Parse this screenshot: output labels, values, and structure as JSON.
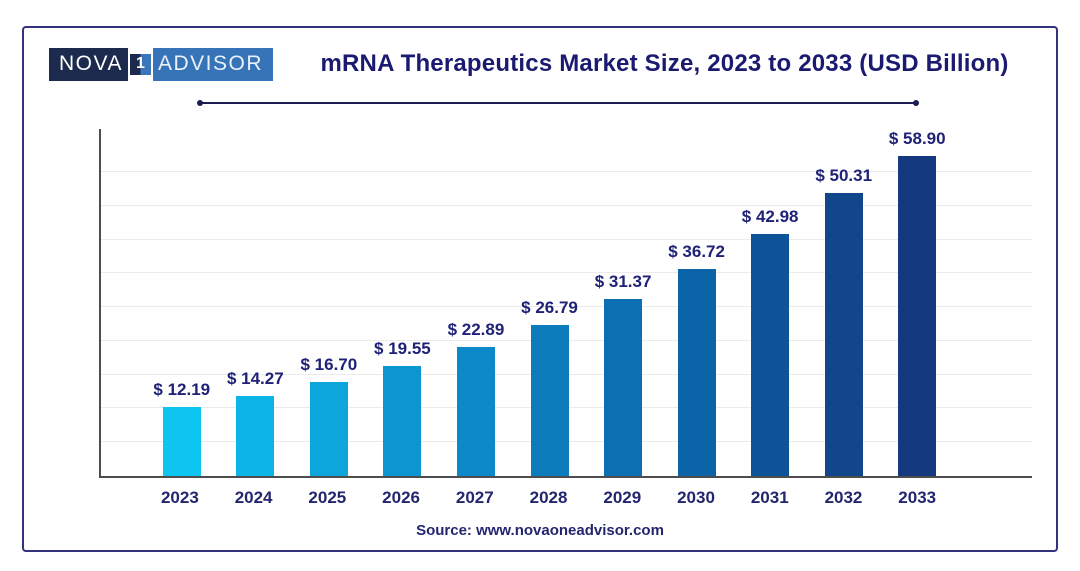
{
  "brand": {
    "segment_left": "NOVA",
    "segment_box": "1",
    "segment_right": "ADVISOR",
    "color_left_bg": "#1c2b4d",
    "color_right_bg": "#3674b7"
  },
  "header": {
    "title": "mRNA Therapeutics Market Size, 2023 to 2033 (USD Billion)"
  },
  "footer": {
    "source": "Source: www.novaoneadvisor.com"
  },
  "chart_data": {
    "type": "bar",
    "title": "mRNA Therapeutics Market Size, 2023 to 2033 (USD Billion)",
    "categories": [
      "2023",
      "2024",
      "2025",
      "2026",
      "2027",
      "2028",
      "2029",
      "2030",
      "2031",
      "2032",
      "2033"
    ],
    "values": [
      12.19,
      14.27,
      16.7,
      19.55,
      22.89,
      26.79,
      31.37,
      36.72,
      42.98,
      50.31,
      58.9
    ],
    "value_prefix": "$ ",
    "unit": "USD Billion",
    "xlabel": "",
    "ylabel": "",
    "ylim": [
      0,
      62
    ],
    "grid": "horizontal",
    "gridline_step": 6,
    "legend": "none",
    "bar_colors": [
      "#0ec4f1",
      "#0db4e7",
      "#0ca5dc",
      "#0b96d1",
      "#0d88c8",
      "#0c7cbc",
      "#0b6fb2",
      "#0b63a8",
      "#0d5398",
      "#11468a",
      "#15397e"
    ],
    "axis_color": "#4d4d4d",
    "gridline_color": "#ebebeb",
    "label_color": "#1f2276"
  }
}
